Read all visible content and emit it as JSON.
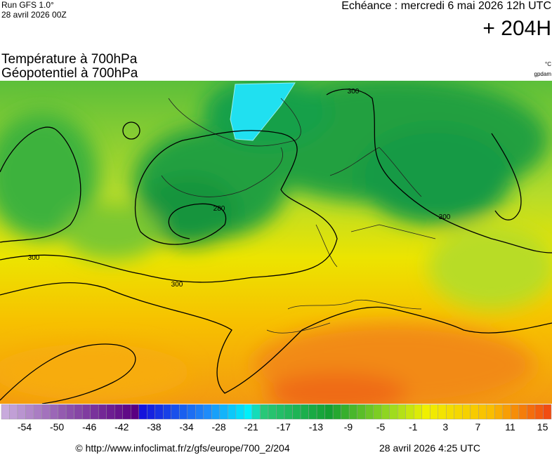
{
  "header": {
    "model": "Run GFS 1.0°",
    "run": "28 avril 2026 00Z",
    "valid": "Echéance : mercredi 6 mai 2026 12h UTC",
    "lead": "+ 204H",
    "title": "Température à 700hPa",
    "subtitle": "Géopotentiel à 700hPa",
    "unit_color": "°C",
    "unit_contour": "gpdam"
  },
  "map": {
    "contour_labels": [
      "300",
      "280",
      "300",
      "300",
      "300"
    ]
  },
  "legend": {
    "ticks": [
      -54,
      -50,
      -46,
      -42,
      -38,
      -34,
      -28,
      -21,
      -17,
      -13,
      -9,
      -5,
      -1,
      3,
      7,
      11,
      15
    ]
  },
  "footer": {
    "source": "© http://www.infoclimat.fr/z/gfs/europe/700_2/204",
    "generated": "28 avril 2026  4:25 UTC"
  }
}
